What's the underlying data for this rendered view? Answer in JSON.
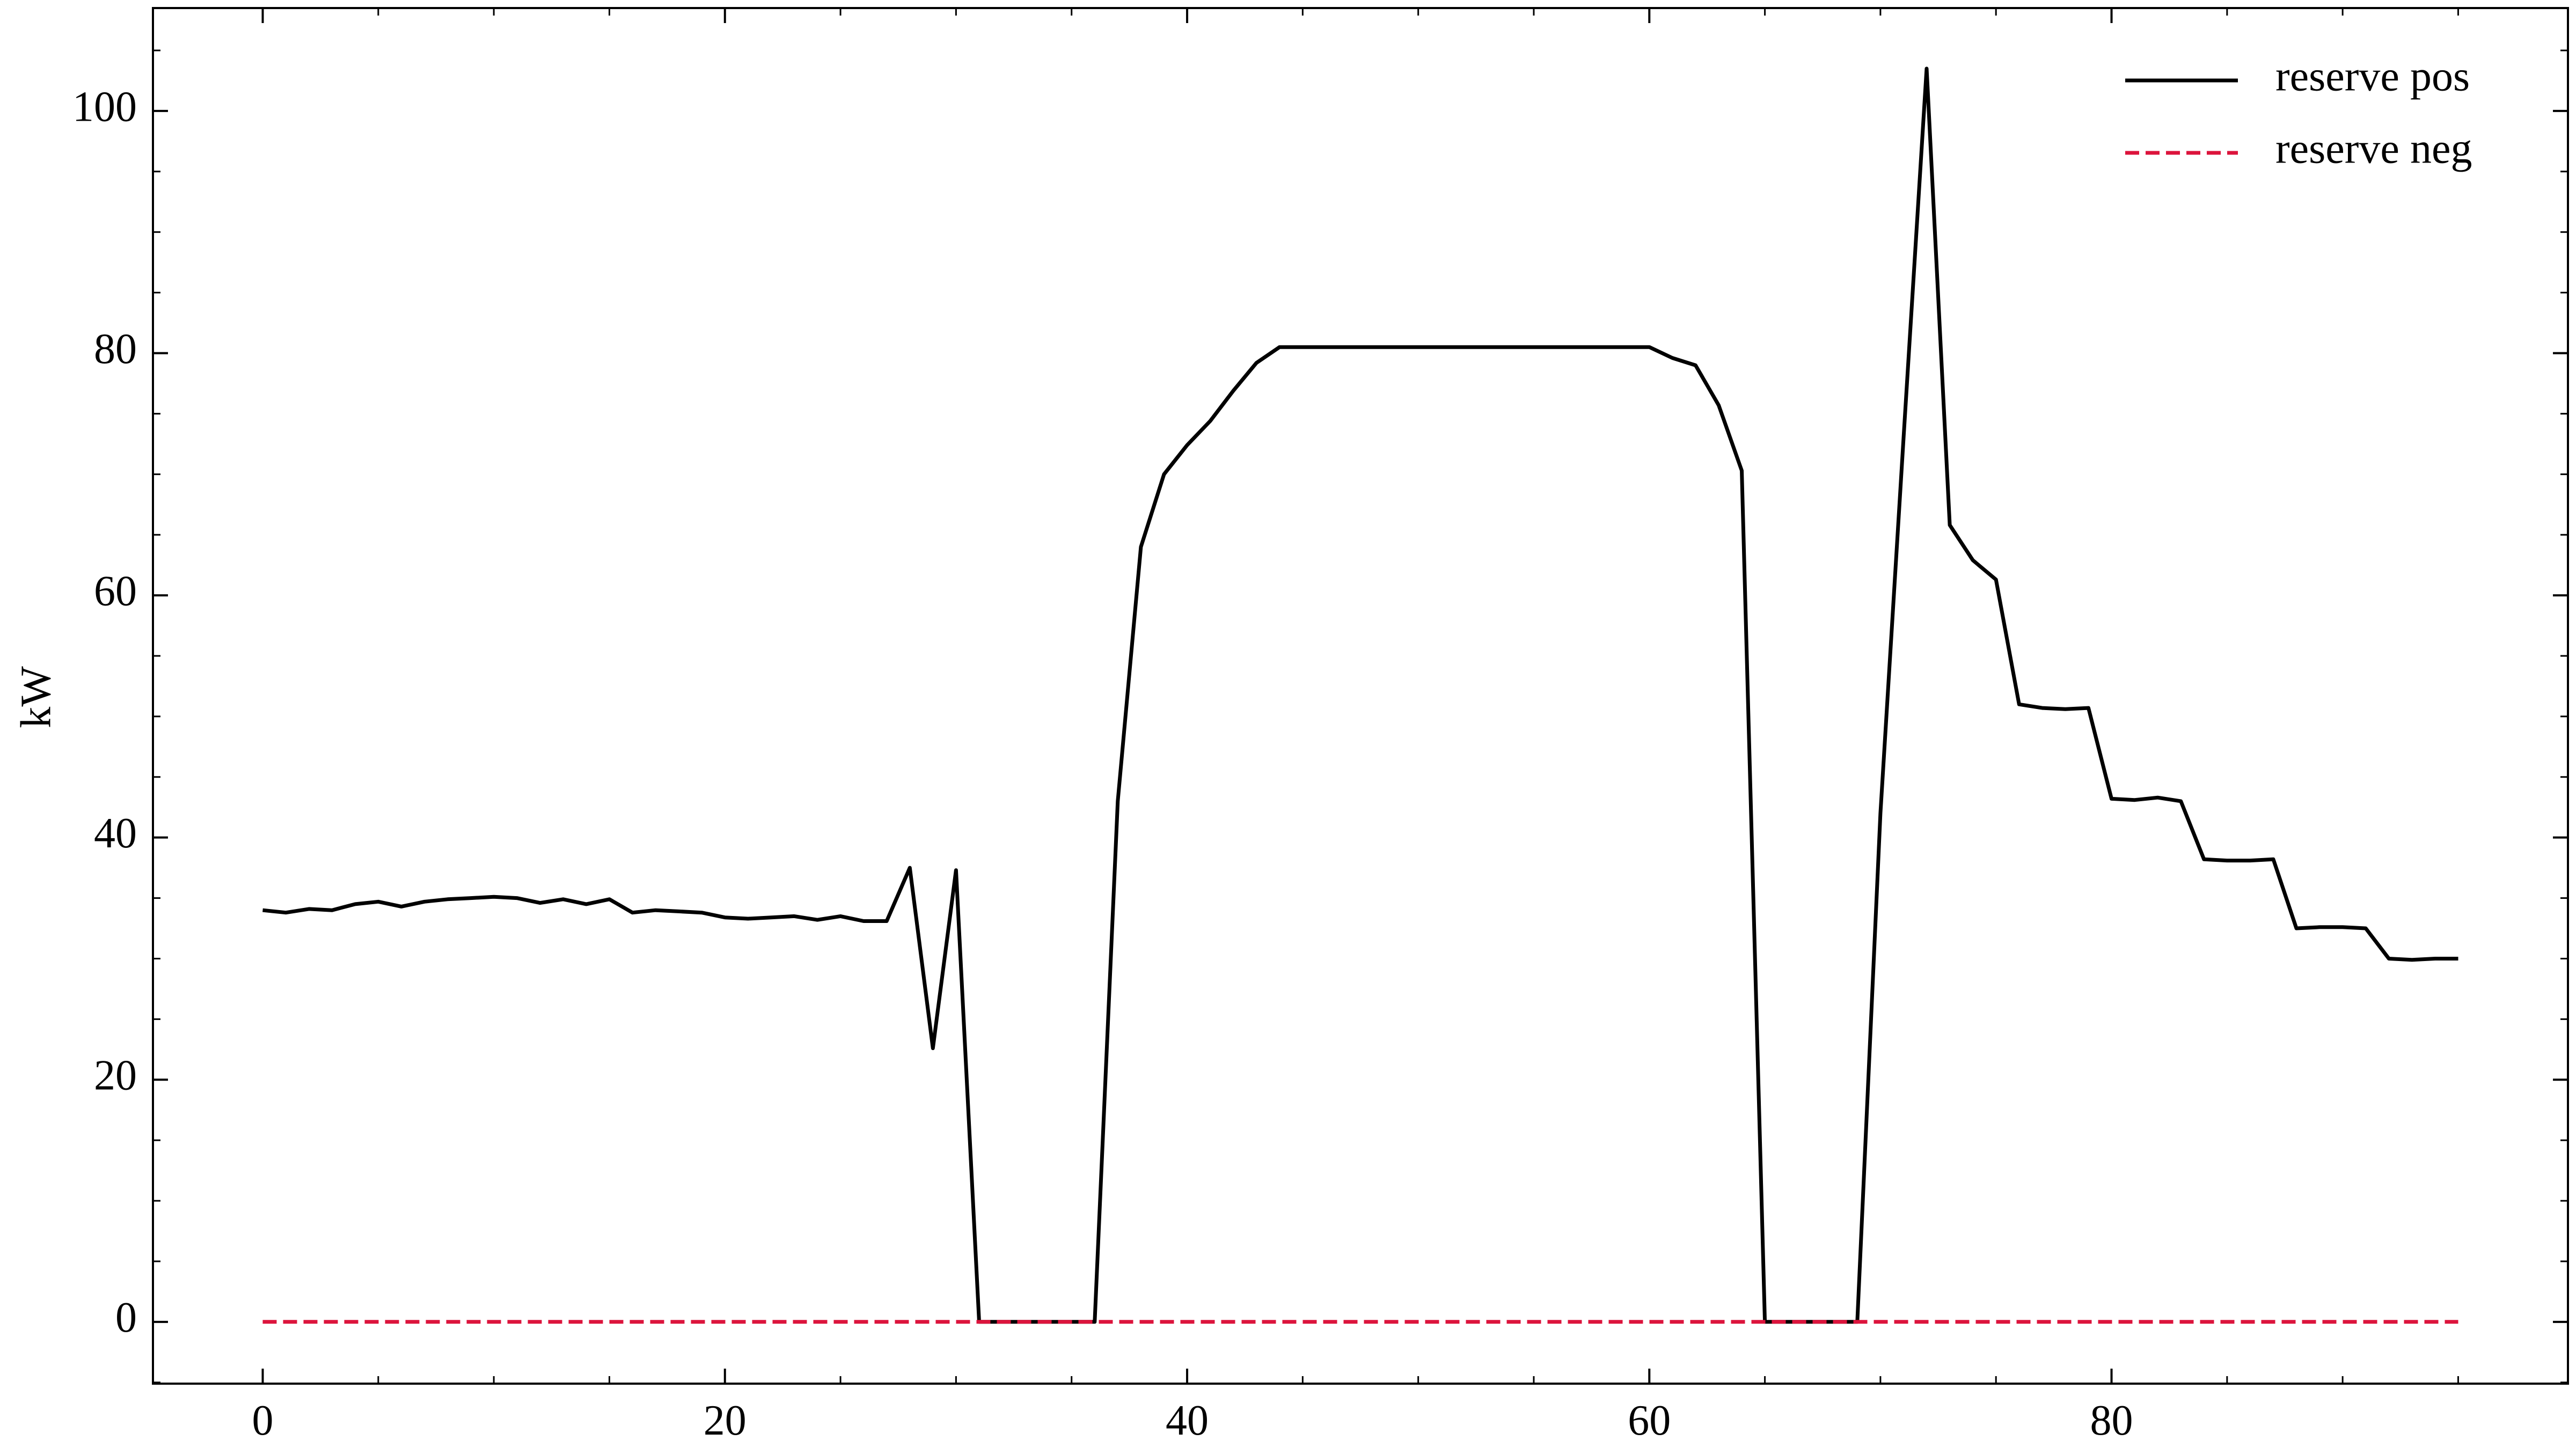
{
  "chart_data": {
    "type": "line",
    "title": "",
    "xlabel": "",
    "ylabel": "kW",
    "xlim": [
      -4.75,
      99.75
    ],
    "ylim": [
      -5.1,
      108.5
    ],
    "x_ticks": [
      0,
      20,
      40,
      60,
      80
    ],
    "y_ticks": [
      0,
      20,
      40,
      60,
      80,
      100
    ],
    "grid": false,
    "legend_position": "top-right",
    "series": [
      {
        "name": "reserve pos",
        "color": "#000000",
        "dash": "solid",
        "x": [
          0,
          1,
          2,
          3,
          4,
          5,
          6,
          7,
          8,
          9,
          10,
          11,
          12,
          13,
          14,
          15,
          16,
          17,
          18,
          19,
          20,
          21,
          22,
          23,
          24,
          25,
          26,
          27,
          28,
          29,
          30,
          31,
          32,
          33,
          34,
          35,
          36,
          37,
          38,
          39,
          40,
          41,
          42,
          43,
          44,
          45,
          46,
          47,
          48,
          49,
          50,
          51,
          52,
          53,
          54,
          55,
          56,
          57,
          58,
          59,
          60,
          61,
          62,
          63,
          64,
          65,
          66,
          67,
          68,
          69,
          70,
          71,
          72,
          73,
          74,
          75,
          76,
          77,
          78,
          79,
          80,
          81,
          82,
          83,
          84,
          85,
          86,
          87,
          88,
          89,
          90,
          91,
          92,
          93,
          94,
          95
        ],
        "y": [
          34.0,
          33.8,
          34.1,
          34.0,
          34.5,
          34.7,
          34.3,
          34.7,
          34.9,
          35.0,
          35.1,
          35.0,
          34.6,
          34.9,
          34.5,
          34.9,
          33.8,
          34.0,
          33.9,
          33.8,
          33.4,
          33.3,
          33.4,
          33.5,
          33.2,
          33.5,
          33.1,
          33.1,
          37.5,
          22.6,
          37.3,
          0.0,
          0.0,
          0.0,
          0.0,
          0.0,
          0.0,
          43.0,
          64.0,
          70.0,
          72.4,
          74.4,
          76.9,
          79.2,
          80.5,
          80.5,
          80.5,
          80.5,
          80.5,
          80.5,
          80.5,
          80.5,
          80.5,
          80.5,
          80.5,
          80.5,
          80.5,
          80.5,
          80.5,
          80.5,
          80.5,
          79.6,
          79.0,
          75.7,
          70.3,
          0.0,
          0.0,
          0.0,
          0.0,
          0.0,
          42.0,
          73.0,
          103.5,
          65.8,
          62.9,
          61.3,
          51.0,
          50.7,
          50.6,
          50.7,
          43.2,
          43.1,
          43.3,
          43.0,
          38.2,
          38.1,
          38.1,
          38.2,
          32.5,
          32.6,
          32.6,
          32.5,
          30.0,
          29.9,
          30.0,
          30.0
        ]
      },
      {
        "name": "reserve neg",
        "color": "#dc143c",
        "dash": "dashed",
        "x": [
          0,
          95
        ],
        "y": [
          0,
          0
        ]
      }
    ]
  }
}
